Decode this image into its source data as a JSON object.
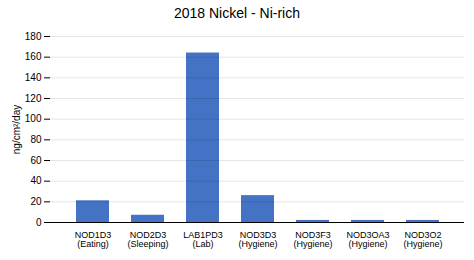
{
  "chart_data": {
    "type": "bar",
    "title": "2018 Nickel - Ni-rich",
    "ylabel": "ng/cm²/day",
    "categories": [
      "NOD1D3\n(Eating)",
      "NOD2D3\n(Sleeping)",
      "LAB1PD3\n(Lab)",
      "NOD3D3\n(Hygiene)",
      "NOD3F3\n(Hygiene)",
      "NOD3OA3\n(Hygiene)",
      "NOD3O2\n(Hygiene)"
    ],
    "values": [
      21,
      7,
      164,
      26,
      2,
      2,
      2
    ],
    "color": "#4472C4",
    "ylim": [
      0,
      180
    ],
    "yticks": [
      0,
      20,
      40,
      60,
      80,
      100,
      120,
      140,
      160,
      180
    ],
    "grid": true
  }
}
